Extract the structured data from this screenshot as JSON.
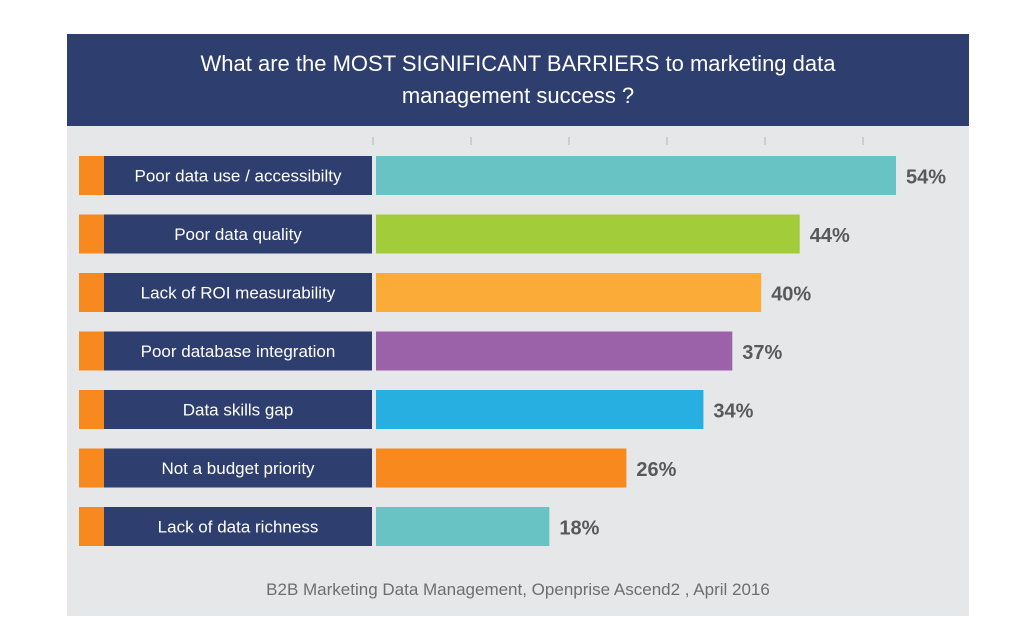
{
  "header": {
    "title": "What are the MOST SIGNIFICANT BARRIERS to marketing data management success ?"
  },
  "colors": {
    "panel_background": "#e6e7e8",
    "header_background": "#2e3e6e",
    "label_background": "#2e3e6e",
    "label_accent": "#f7891f",
    "value_text": "#58595b"
  },
  "chart_data": {
    "type": "bar",
    "orientation": "horizontal",
    "title": "What are the MOST SIGNIFICANT BARRIERS to marketing data management success ?",
    "categories": [
      "Poor data use / accessibilty",
      "Poor data quality",
      "Lack of ROI measurability",
      "Poor database integration",
      "Data skills gap",
      "Not a budget priority",
      "Lack of data richness"
    ],
    "values": [
      54,
      44,
      40,
      37,
      34,
      26,
      18
    ],
    "value_labels": [
      "54%",
      "44%",
      "40%",
      "37%",
      "34%",
      "26%",
      "18%"
    ],
    "bar_colors": [
      "#67c3c4",
      "#a3cc3a",
      "#fbac38",
      "#9b62a9",
      "#27afe2",
      "#f7891f",
      "#67c3c4"
    ],
    "xlim": [
      0,
      60
    ],
    "grid": false,
    "legend": "none",
    "source": "B2B Marketing Data Management, Openprise Ascend2 , April 2016"
  }
}
